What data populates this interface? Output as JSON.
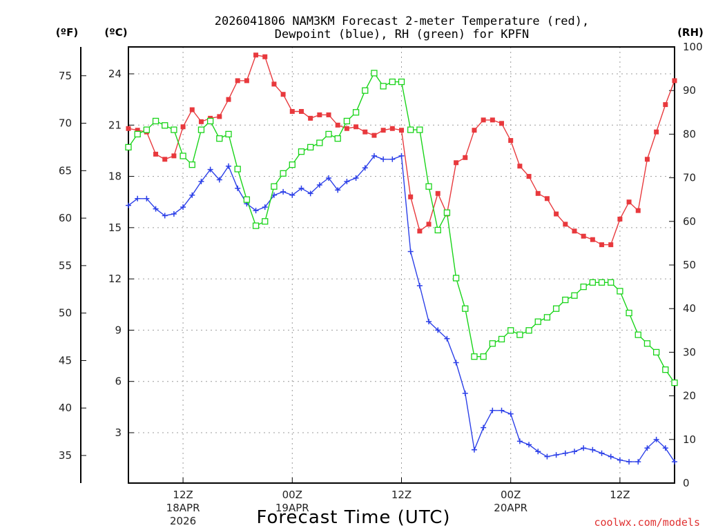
{
  "chart_data": {
    "type": "line",
    "title_line1": "2026041806 NAM3KM Forecast 2-meter Temperature (red),",
    "title_line2": "Dewpoint (blue), RH (green) for KPFN",
    "unit_f": "(ºF)",
    "unit_c": "(ºC)",
    "unit_rh": "(RH)",
    "xlabel": "Forecast Time (UTC)",
    "credit": "coolwx.com/models",
    "x_range": [
      0,
      60
    ],
    "celsius_ticks": [
      "3",
      "6",
      "9",
      "12",
      "15",
      "18",
      "21",
      "24"
    ],
    "fahrenheit_ticks": [
      "35",
      "40",
      "45",
      "50",
      "55",
      "60",
      "65",
      "70",
      "75"
    ],
    "rh_ticks": [
      "0",
      "10",
      "20",
      "30",
      "40",
      "50",
      "60",
      "70",
      "80",
      "90",
      "100"
    ],
    "rh_range": [
      0,
      100
    ],
    "x_ticks": [
      {
        "hour": 6,
        "label": "12Z",
        "date": "18APR",
        "year": "2026"
      },
      {
        "hour": 18,
        "label": "00Z",
        "date": "19APR",
        "year": ""
      },
      {
        "hour": 30,
        "label": "12Z",
        "date": "",
        "year": ""
      },
      {
        "hour": 42,
        "label": "00Z",
        "date": "20APR",
        "year": ""
      },
      {
        "hour": 54,
        "label": "12Z",
        "date": "",
        "year": ""
      }
    ],
    "series": [
      {
        "name": "Temperature (C)",
        "color": "#e8393d",
        "marker": "filled-square",
        "axis": "celsius",
        "values": [
          20.8,
          20.7,
          20.6,
          19.3,
          19.0,
          19.2,
          20.9,
          21.9,
          21.2,
          21.4,
          21.5,
          22.5,
          23.6,
          23.6,
          25.1,
          25.0,
          23.4,
          22.8,
          21.8,
          21.8,
          21.4,
          21.6,
          21.6,
          21.0,
          20.8,
          20.9,
          20.6,
          20.4,
          20.7,
          20.8,
          20.7,
          16.8,
          14.8,
          15.2,
          17.0,
          15.8,
          18.8,
          19.1,
          20.7,
          21.3,
          21.3,
          21.1,
          20.1,
          18.6,
          18.0,
          17.0,
          16.7,
          15.8,
          15.2,
          14.8,
          14.5,
          14.3,
          14.0,
          14.0,
          15.5,
          16.5,
          16.0,
          19.0,
          20.6,
          22.2,
          23.6
        ]
      },
      {
        "name": "Dewpoint (C)",
        "color": "#2b3fe8",
        "marker": "plus",
        "axis": "celsius",
        "values": [
          16.3,
          16.7,
          16.7,
          16.1,
          15.7,
          15.8,
          16.2,
          16.9,
          17.7,
          18.4,
          17.8,
          18.6,
          17.3,
          16.4,
          16.0,
          16.2,
          16.9,
          17.1,
          16.9,
          17.3,
          17.0,
          17.5,
          17.9,
          17.2,
          17.7,
          17.9,
          18.5,
          19.2,
          19.0,
          19.0,
          19.2,
          13.6,
          11.6,
          9.5,
          9.0,
          8.5,
          7.1,
          5.3,
          2.0,
          3.3,
          4.3,
          4.3,
          4.1,
          2.5,
          2.3,
          1.9,
          1.6,
          1.7,
          1.8,
          1.9,
          2.1,
          2.0,
          1.8,
          1.6,
          1.4,
          1.3,
          1.3,
          2.1,
          2.6,
          2.1,
          1.3
        ]
      },
      {
        "name": "Relative Humidity (%)",
        "color": "#19d419",
        "marker": "open-square",
        "axis": "rh",
        "values": [
          77,
          80,
          81,
          83,
          82,
          81,
          75,
          73,
          81,
          83,
          79,
          80,
          72,
          65,
          59,
          60,
          68,
          71,
          73,
          76,
          77,
          78,
          80,
          79,
          83,
          85,
          90,
          94,
          91,
          92,
          92,
          81,
          81,
          68,
          58,
          62,
          47,
          40,
          29,
          29,
          32,
          33,
          35,
          34,
          35,
          37,
          38,
          40,
          42,
          43,
          45,
          46,
          46,
          46,
          44,
          39,
          34,
          32,
          30,
          26,
          23
        ]
      }
    ]
  }
}
